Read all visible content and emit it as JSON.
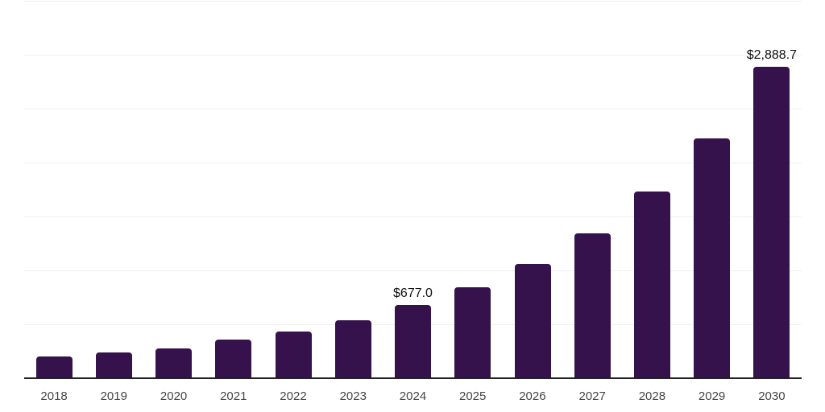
{
  "chart_data": {
    "type": "bar",
    "title": "",
    "xlabel": "",
    "ylabel": "",
    "categories": [
      "2018",
      "2019",
      "2020",
      "2021",
      "2022",
      "2023",
      "2024",
      "2025",
      "2026",
      "2027",
      "2028",
      "2029",
      "2030"
    ],
    "values": [
      200,
      240,
      278,
      360,
      434,
      541,
      677,
      843,
      1062,
      1347,
      1729,
      2225,
      2888.7
    ],
    "data_labels": [
      "",
      "",
      "",
      "",
      "",
      "",
      "$677.0",
      "",
      "",
      "",
      "",
      "",
      "$2,888.7"
    ],
    "ylim": [
      0,
      3500
    ],
    "gridline_step": 500,
    "grid": "horizontal-only",
    "legend": "none",
    "bar_color": "#36124d",
    "axis_line_color": "#222222",
    "gridline_color": "#f0f0f2",
    "tick_label_color": "#454545",
    "data_label_color": "#111111",
    "background_color": "#ffffff"
  }
}
